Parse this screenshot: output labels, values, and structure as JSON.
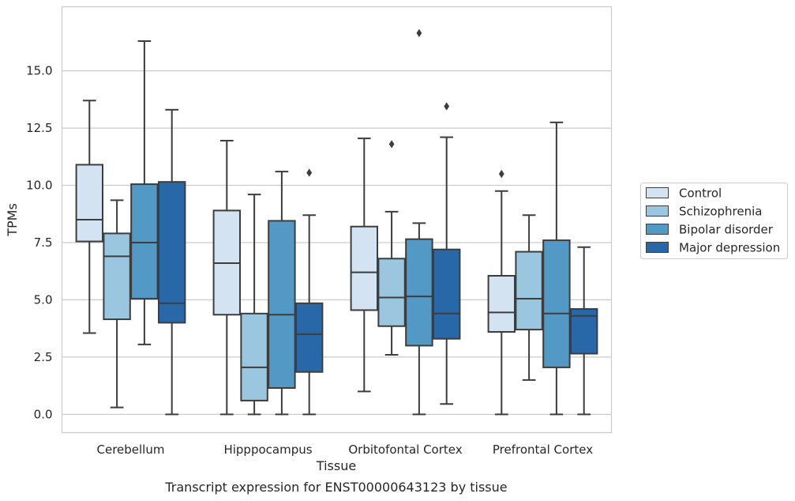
{
  "chart_data": {
    "type": "box",
    "xlabel": "Tissue",
    "ylabel": "TPMs",
    "caption": "Transcript expression for ENST00000643123 by tissue",
    "ylim": [
      -0.8,
      17.8
    ],
    "yticks": [
      0.0,
      2.5,
      5.0,
      7.5,
      10.0,
      12.5,
      15.0
    ],
    "ytick_labels": [
      "0.0",
      "2.5",
      "5.0",
      "7.5",
      "10.0",
      "12.5",
      "15.0"
    ],
    "grid": "horizontal",
    "legend_position": "right",
    "categories": [
      "Cerebellum",
      "Hipppocampus",
      "Orbitofontal Cortex",
      "Prefrontal Cortex"
    ],
    "series": [
      {
        "name": "Control",
        "color": "#d4e3f2",
        "boxes": [
          {
            "whislo": 3.55,
            "q1": 7.55,
            "med": 8.5,
            "q3": 10.9,
            "whishi": 13.7,
            "fliers": []
          },
          {
            "whislo": 0.0,
            "q1": 4.35,
            "med": 6.6,
            "q3": 8.9,
            "whishi": 11.95,
            "fliers": []
          },
          {
            "whislo": 1.0,
            "q1": 4.55,
            "med": 6.2,
            "q3": 8.2,
            "whishi": 12.05,
            "fliers": []
          },
          {
            "whislo": 0.0,
            "q1": 3.6,
            "med": 4.45,
            "q3": 6.05,
            "whishi": 9.75,
            "fliers": [
              10.5
            ]
          }
        ]
      },
      {
        "name": "Schizophrenia",
        "color": "#9ac6e0",
        "boxes": [
          {
            "whislo": 0.3,
            "q1": 4.15,
            "med": 6.9,
            "q3": 7.9,
            "whishi": 9.35,
            "fliers": []
          },
          {
            "whislo": 0.0,
            "q1": 0.6,
            "med": 2.05,
            "q3": 4.4,
            "whishi": 9.6,
            "fliers": []
          },
          {
            "whislo": 2.6,
            "q1": 3.85,
            "med": 5.1,
            "q3": 6.8,
            "whishi": 8.85,
            "fliers": [
              11.8
            ]
          },
          {
            "whislo": 1.5,
            "q1": 3.7,
            "med": 5.05,
            "q3": 7.1,
            "whishi": 8.7,
            "fliers": []
          }
        ]
      },
      {
        "name": "Bipolar disorder",
        "color": "#5399c6",
        "boxes": [
          {
            "whislo": 3.05,
            "q1": 5.05,
            "med": 7.5,
            "q3": 10.05,
            "whishi": 16.3,
            "fliers": []
          },
          {
            "whislo": 0.0,
            "q1": 1.15,
            "med": 4.35,
            "q3": 8.45,
            "whishi": 10.6,
            "fliers": []
          },
          {
            "whislo": 0.0,
            "q1": 3.0,
            "med": 5.15,
            "q3": 7.65,
            "whishi": 8.35,
            "fliers": [
              16.65
            ]
          },
          {
            "whislo": 0.0,
            "q1": 2.05,
            "med": 4.4,
            "q3": 7.6,
            "whishi": 12.75,
            "fliers": []
          }
        ]
      },
      {
        "name": "Major depression",
        "color": "#2868a9",
        "boxes": [
          {
            "whislo": 0.0,
            "q1": 4.0,
            "med": 4.85,
            "q3": 10.15,
            "whishi": 13.3,
            "fliers": []
          },
          {
            "whislo": 0.0,
            "q1": 1.85,
            "med": 3.5,
            "q3": 4.85,
            "whishi": 8.7,
            "fliers": [
              10.55
            ]
          },
          {
            "whislo": 0.45,
            "q1": 3.3,
            "med": 4.4,
            "q3": 7.2,
            "whishi": 12.1,
            "fliers": [
              13.45
            ]
          },
          {
            "whislo": 0.0,
            "q1": 2.65,
            "med": 4.3,
            "q3": 4.6,
            "whishi": 7.3,
            "fliers": []
          }
        ]
      }
    ]
  }
}
